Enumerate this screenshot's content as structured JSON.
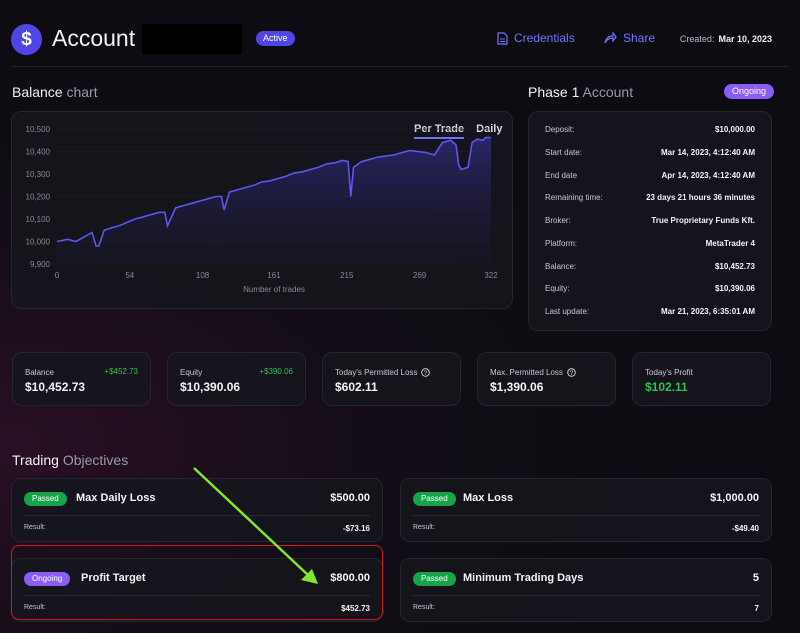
{
  "header": {
    "title": "Account",
    "status": "Active",
    "credentials_label": "Credentials",
    "share_label": "Share",
    "created_label": "Created:",
    "created_value": "Mar 10, 2023"
  },
  "balance_chart": {
    "title_main": "Balance",
    "title_muted": "chart",
    "tabs": [
      "Per Trade",
      "Daily"
    ]
  },
  "chart_data": {
    "type": "line",
    "title": "",
    "xlabel": "Number of trades",
    "ylabel": "",
    "xlim": [
      0,
      322
    ],
    "ylim": [
      9900,
      10500
    ],
    "x_ticks": [
      "0",
      "54",
      "108",
      "161",
      "215",
      "269",
      "322"
    ],
    "y_ticks": [
      "10,500",
      "10,400",
      "10,300",
      "10,200",
      "10,100",
      "10,000",
      "9,900"
    ],
    "series": [
      {
        "name": "",
        "x": [
          0,
          8,
          14,
          20,
          26,
          29,
          31,
          35,
          40,
          46,
          50,
          54,
          58,
          64,
          70,
          76,
          80,
          82,
          88,
          94,
          100,
          106,
          112,
          118,
          122,
          124,
          128,
          134,
          140,
          146,
          152,
          158,
          164,
          170,
          176,
          182,
          188,
          194,
          200,
          206,
          212,
          216,
          218,
          220,
          226,
          232,
          238,
          244,
          250,
          256,
          262,
          268,
          274,
          280,
          286,
          292,
          296,
          298,
          300,
          305,
          308,
          312,
          316,
          318,
          322
        ],
        "y": [
          10000,
          10010,
          10000,
          10020,
          10040,
          9980,
          9980,
          10050,
          10060,
          10070,
          10080,
          10090,
          10100,
          10110,
          10120,
          10130,
          10130,
          10070,
          10150,
          10160,
          10170,
          10180,
          10190,
          10200,
          10200,
          10140,
          10220,
          10230,
          10240,
          10250,
          10265,
          10270,
          10280,
          10290,
          10305,
          10310,
          10320,
          10330,
          10345,
          10350,
          10360,
          10355,
          10200,
          10330,
          10355,
          10365,
          10375,
          10380,
          10385,
          10395,
          10405,
          10400,
          10395,
          10385,
          10440,
          10450,
          10430,
          10340,
          10320,
          10330,
          10440,
          10455,
          10450,
          10462,
          10462
        ]
      }
    ]
  },
  "phase": {
    "title_main": "Phase 1",
    "title_muted": "Account",
    "status": "Ongoing",
    "rows": [
      {
        "label": "Deposit:",
        "value": "$10,000.00"
      },
      {
        "label": "Start date:",
        "value": "Mar 14, 2023, 4:12:40 AM"
      },
      {
        "label": "End date",
        "value": "Apr 14, 2023, 4:12:40 AM"
      },
      {
        "label": "Remaining time:",
        "value": "23 days 21 hours 36 minutes"
      },
      {
        "label": "Broker:",
        "value": "True Proprietary Funds Kft."
      },
      {
        "label": "Platform:",
        "value": "MetaTrader 4"
      },
      {
        "label": "Balance:",
        "value": "$10,452.73"
      },
      {
        "label": "Equity:",
        "value": "$10,390.06"
      },
      {
        "label": "Last update:",
        "value": "Mar 21, 2023, 6:35:01 AM"
      }
    ]
  },
  "stats": [
    {
      "label": "Balance",
      "value": "$10,452.73",
      "delta": "+$452.73"
    },
    {
      "label": "Equity",
      "value": "$10,390.06",
      "delta": "+$390.06"
    },
    {
      "label": "Today's Permitted Loss",
      "value": "$602.11"
    },
    {
      "label": "Max. Permitted Loss",
      "value": "$1,390.06"
    },
    {
      "label": "Today's Profit",
      "value": "$102.11"
    }
  ],
  "objectives": {
    "title_main": "Trading",
    "title_muted": "Objectives",
    "items": [
      {
        "status": "Passed",
        "name": "Max Daily Loss",
        "amount": "$500.00",
        "result_label": "Result:",
        "result": "-$73.16"
      },
      {
        "status": "Passed",
        "name": "Max Loss",
        "amount": "$1,000.00",
        "result_label": "Result:",
        "result": "-$49.40"
      },
      {
        "status": "Ongoing",
        "name": "Profit Target",
        "amount": "$800.00",
        "result_label": "Result:",
        "result": "$452.73"
      },
      {
        "status": "Passed",
        "name": "Minimum Trading Days",
        "amount": "5",
        "result_label": "Result:",
        "result": "7"
      }
    ]
  },
  "colors": {
    "accent": "#4f46e5",
    "link": "#6d74ff",
    "passed": "#16a34a",
    "ongoing": "#8b5cf6",
    "positive": "#2fbf5a",
    "chart_line": "#5b57f0",
    "annotation_arrow": "#7ee82a",
    "annotation_box": "#d11b1b"
  }
}
